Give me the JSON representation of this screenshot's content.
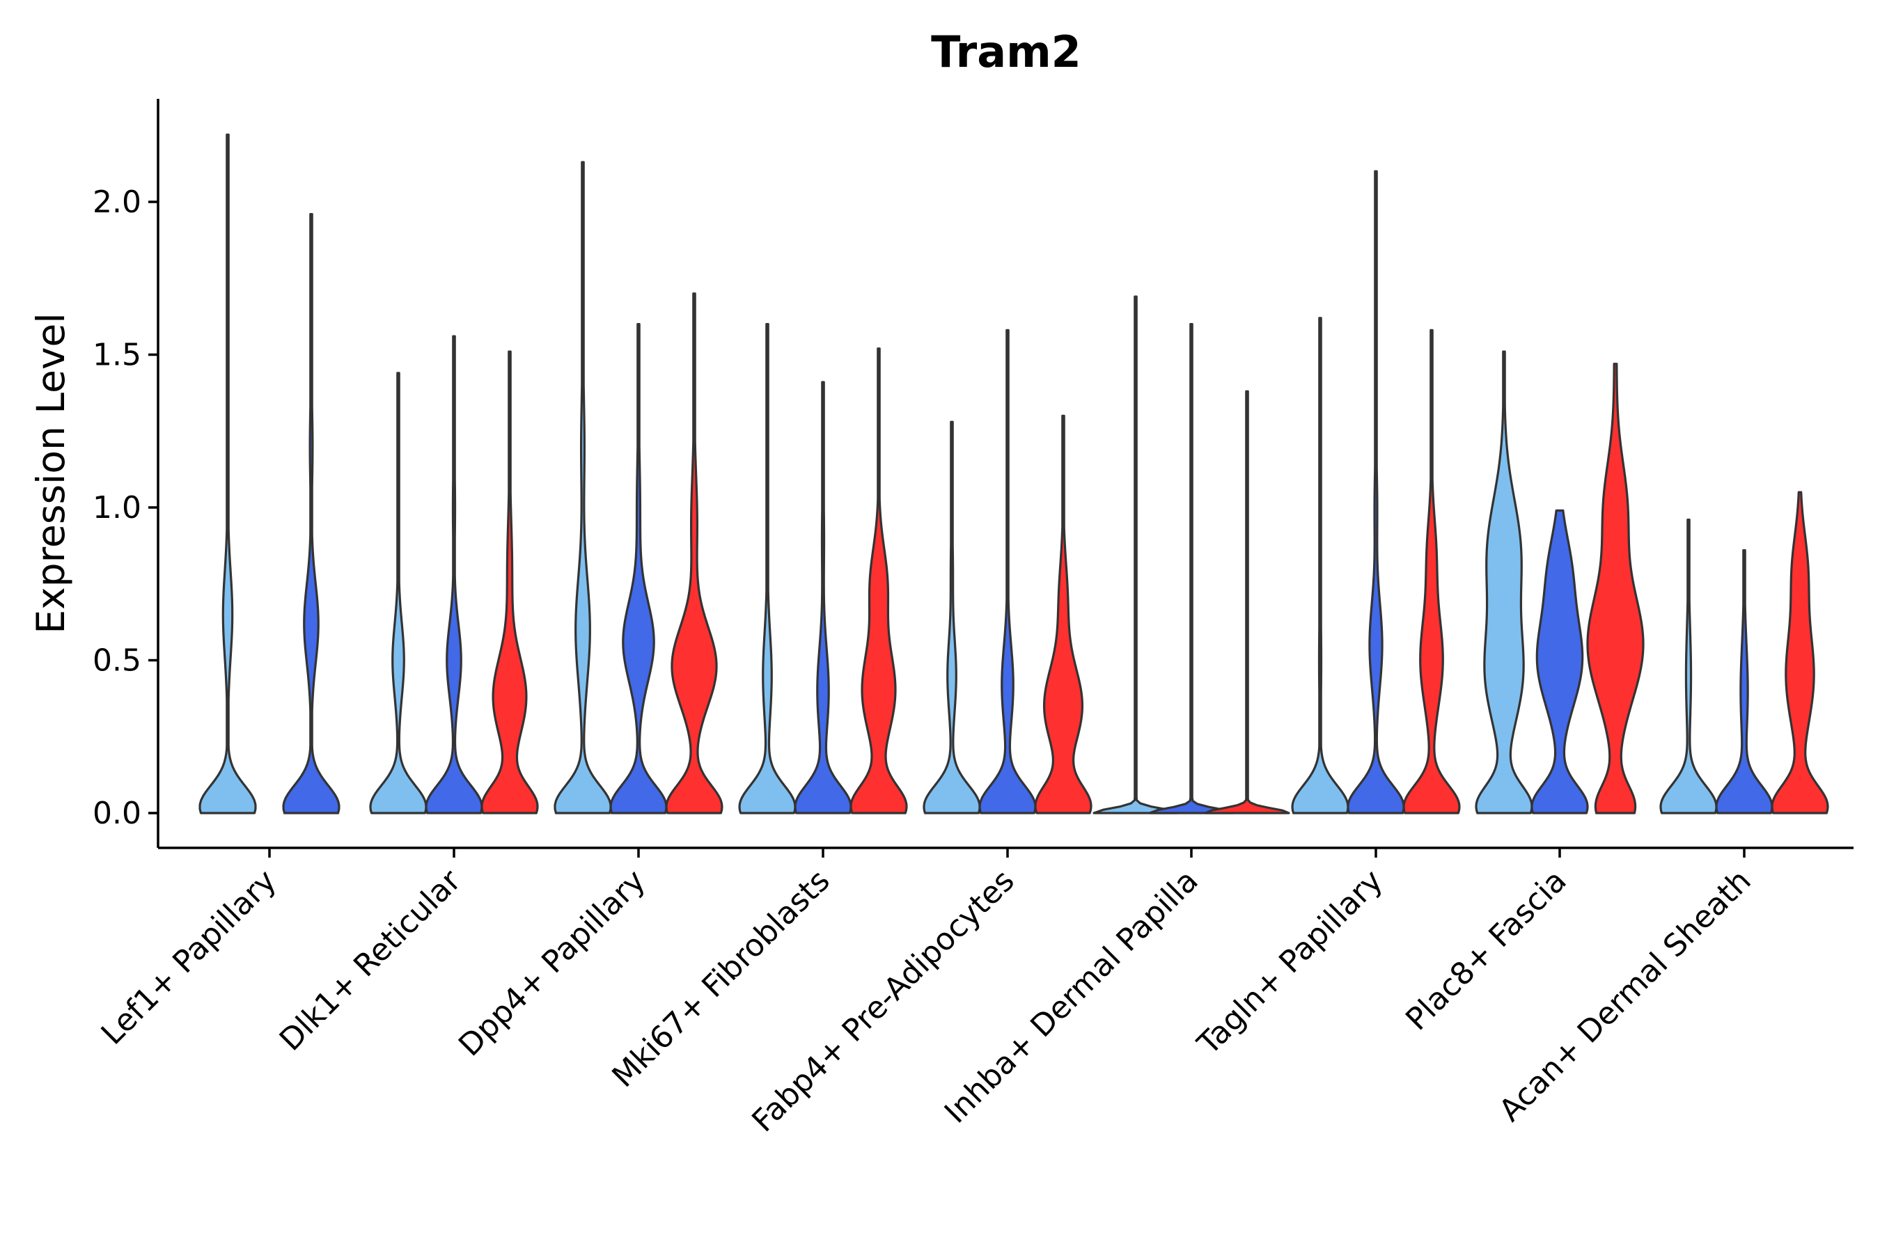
{
  "chart_data": {
    "type": "violin",
    "title": "Tram2",
    "xlabel": "",
    "ylabel": "Expression Level",
    "ylim": [
      -0.11,
      2.33
    ],
    "yticks": [
      "0.0",
      "0.5",
      "1.0",
      "1.5",
      "2.0"
    ],
    "ytick_values": [
      0,
      0.5,
      1.0,
      1.5,
      2.0
    ],
    "categories": [
      "Lef1+ Papillary",
      "Dlk1+ Reticular",
      "Dpp4+ Papillary",
      "Mki67+ Fibroblasts",
      "Fabp4+ Pre-Adipocytes",
      "Inhba+ Dermal Papilla",
      "Tagln+ Papillary",
      "Plac8+ Fascia",
      "Acan+ Dermal Sheath"
    ],
    "series_colors": [
      "#7fbfef",
      "#4169e8",
      "#ff3030"
    ],
    "violins": [
      {
        "category": 0,
        "series": 0,
        "max": 2.22,
        "modes": [
          [
            0.02,
            1.0,
            0.07
          ],
          [
            0.65,
            0.16,
            0.14
          ],
          [
            1.5,
            0.02,
            0.15
          ]
        ],
        "base": 0.008
      },
      {
        "category": 0,
        "series": 1,
        "max": 1.96,
        "modes": [
          [
            0.02,
            1.0,
            0.07
          ],
          [
            0.62,
            0.25,
            0.13
          ],
          [
            1.2,
            0.04,
            0.12
          ]
        ],
        "base": 0.008
      },
      {
        "category": 1,
        "series": 0,
        "max": 1.44,
        "modes": [
          [
            0.02,
            1.0,
            0.07
          ],
          [
            0.5,
            0.2,
            0.12
          ],
          [
            1.0,
            0.02,
            0.12
          ]
        ],
        "base": 0.008
      },
      {
        "category": 1,
        "series": 1,
        "max": 1.56,
        "modes": [
          [
            0.02,
            1.0,
            0.07
          ],
          [
            0.5,
            0.25,
            0.12
          ],
          [
            1.0,
            0.03,
            0.12
          ]
        ],
        "base": 0.008
      },
      {
        "category": 1,
        "series": 2,
        "max": 1.51,
        "modes": [
          [
            0.02,
            1.0,
            0.07
          ],
          [
            0.38,
            0.6,
            0.13
          ],
          [
            0.8,
            0.08,
            0.15
          ]
        ],
        "base": 0.01
      },
      {
        "category": 2,
        "series": 0,
        "max": 2.13,
        "modes": [
          [
            0.02,
            1.0,
            0.07
          ],
          [
            0.6,
            0.25,
            0.17
          ],
          [
            1.2,
            0.05,
            0.15
          ]
        ],
        "base": 0.01
      },
      {
        "category": 2,
        "series": 1,
        "max": 1.6,
        "modes": [
          [
            0.02,
            1.0,
            0.07
          ],
          [
            0.56,
            0.55,
            0.13
          ],
          [
            1.0,
            0.05,
            0.15
          ]
        ],
        "base": 0.01
      },
      {
        "category": 2,
        "series": 2,
        "max": 1.7,
        "modes": [
          [
            0.02,
            1.0,
            0.07
          ],
          [
            0.48,
            0.8,
            0.13
          ],
          [
            0.95,
            0.1,
            0.15
          ]
        ],
        "base": 0.01
      },
      {
        "category": 3,
        "series": 0,
        "max": 1.6,
        "modes": [
          [
            0.02,
            1.0,
            0.07
          ],
          [
            0.45,
            0.15,
            0.14
          ],
          [
            1.0,
            0.02,
            0.12
          ]
        ],
        "base": 0.008
      },
      {
        "category": 3,
        "series": 1,
        "max": 1.41,
        "modes": [
          [
            0.02,
            1.0,
            0.07
          ],
          [
            0.4,
            0.2,
            0.14
          ],
          [
            0.9,
            0.03,
            0.12
          ]
        ],
        "base": 0.008
      },
      {
        "category": 3,
        "series": 2,
        "max": 1.52,
        "modes": [
          [
            0.02,
            1.0,
            0.07
          ],
          [
            0.4,
            0.6,
            0.14
          ],
          [
            0.75,
            0.3,
            0.12
          ]
        ],
        "base": 0.01
      },
      {
        "category": 4,
        "series": 0,
        "max": 1.28,
        "modes": [
          [
            0.02,
            1.0,
            0.07
          ],
          [
            0.45,
            0.15,
            0.12
          ],
          [
            0.8,
            0.03,
            0.1
          ]
        ],
        "base": 0.008
      },
      {
        "category": 4,
        "series": 1,
        "max": 1.58,
        "modes": [
          [
            0.02,
            1.0,
            0.07
          ],
          [
            0.42,
            0.2,
            0.13
          ],
          [
            0.9,
            0.02,
            0.1
          ]
        ],
        "base": 0.008
      },
      {
        "category": 4,
        "series": 2,
        "max": 1.3,
        "modes": [
          [
            0.02,
            1.0,
            0.07
          ],
          [
            0.35,
            0.7,
            0.13
          ],
          [
            0.7,
            0.15,
            0.12
          ]
        ],
        "base": 0.01
      },
      {
        "category": 5,
        "series": 0,
        "max": 1.69,
        "modes": [
          [
            0.0,
            1.0,
            0.015
          ]
        ],
        "base": 0.005,
        "width_override": 0.06
      },
      {
        "category": 5,
        "series": 1,
        "max": 1.6,
        "modes": [
          [
            0.0,
            1.0,
            0.015
          ]
        ],
        "base": 0.005,
        "width_override": 0.06
      },
      {
        "category": 5,
        "series": 2,
        "max": 1.38,
        "modes": [
          [
            0.0,
            1.0,
            0.015
          ]
        ],
        "base": 0.005,
        "width_override": 0.06
      },
      {
        "category": 6,
        "series": 0,
        "max": 1.62,
        "modes": [
          [
            0.02,
            1.0,
            0.07
          ],
          [
            0.5,
            0.03,
            0.14
          ],
          [
            1.0,
            0.015,
            0.12
          ]
        ],
        "base": 0.008
      },
      {
        "category": 6,
        "series": 1,
        "max": 2.1,
        "modes": [
          [
            0.02,
            1.0,
            0.07
          ],
          [
            0.55,
            0.22,
            0.14
          ],
          [
            1.0,
            0.04,
            0.12
          ]
        ],
        "base": 0.008
      },
      {
        "category": 6,
        "series": 2,
        "max": 1.58,
        "modes": [
          [
            0.02,
            1.0,
            0.07
          ],
          [
            0.5,
            0.4,
            0.15
          ],
          [
            0.85,
            0.15,
            0.12
          ]
        ],
        "base": 0.01
      },
      {
        "category": 7,
        "series": 0,
        "max": 1.51,
        "modes": [
          [
            0.02,
            1.0,
            0.07
          ],
          [
            0.45,
            0.65,
            0.16
          ],
          [
            0.85,
            0.6,
            0.18
          ]
        ],
        "base": 0.015
      },
      {
        "category": 7,
        "series": 1,
        "max": 0.99,
        "modes": [
          [
            0.02,
            1.0,
            0.07
          ],
          [
            0.5,
            0.8,
            0.15
          ],
          [
            0.8,
            0.35,
            0.12
          ]
        ],
        "base": 0.02
      },
      {
        "category": 7,
        "series": 2,
        "max": 1.47,
        "modes": [
          [
            0.02,
            0.9,
            0.07
          ],
          [
            0.55,
            1.3,
            0.18
          ],
          [
            1.0,
            0.5,
            0.15
          ]
        ],
        "base": 0.06
      },
      {
        "category": 8,
        "series": 0,
        "max": 0.96,
        "modes": [
          [
            0.02,
            1.0,
            0.07
          ],
          [
            0.45,
            0.08,
            0.15
          ]
        ],
        "base": 0.01
      },
      {
        "category": 8,
        "series": 1,
        "max": 0.86,
        "modes": [
          [
            0.02,
            1.0,
            0.07
          ],
          [
            0.4,
            0.12,
            0.15
          ]
        ],
        "base": 0.01
      },
      {
        "category": 8,
        "series": 2,
        "max": 1.05,
        "modes": [
          [
            0.02,
            1.0,
            0.07
          ],
          [
            0.45,
            0.5,
            0.16
          ],
          [
            0.8,
            0.25,
            0.12
          ]
        ],
        "base": 0.015
      }
    ]
  }
}
